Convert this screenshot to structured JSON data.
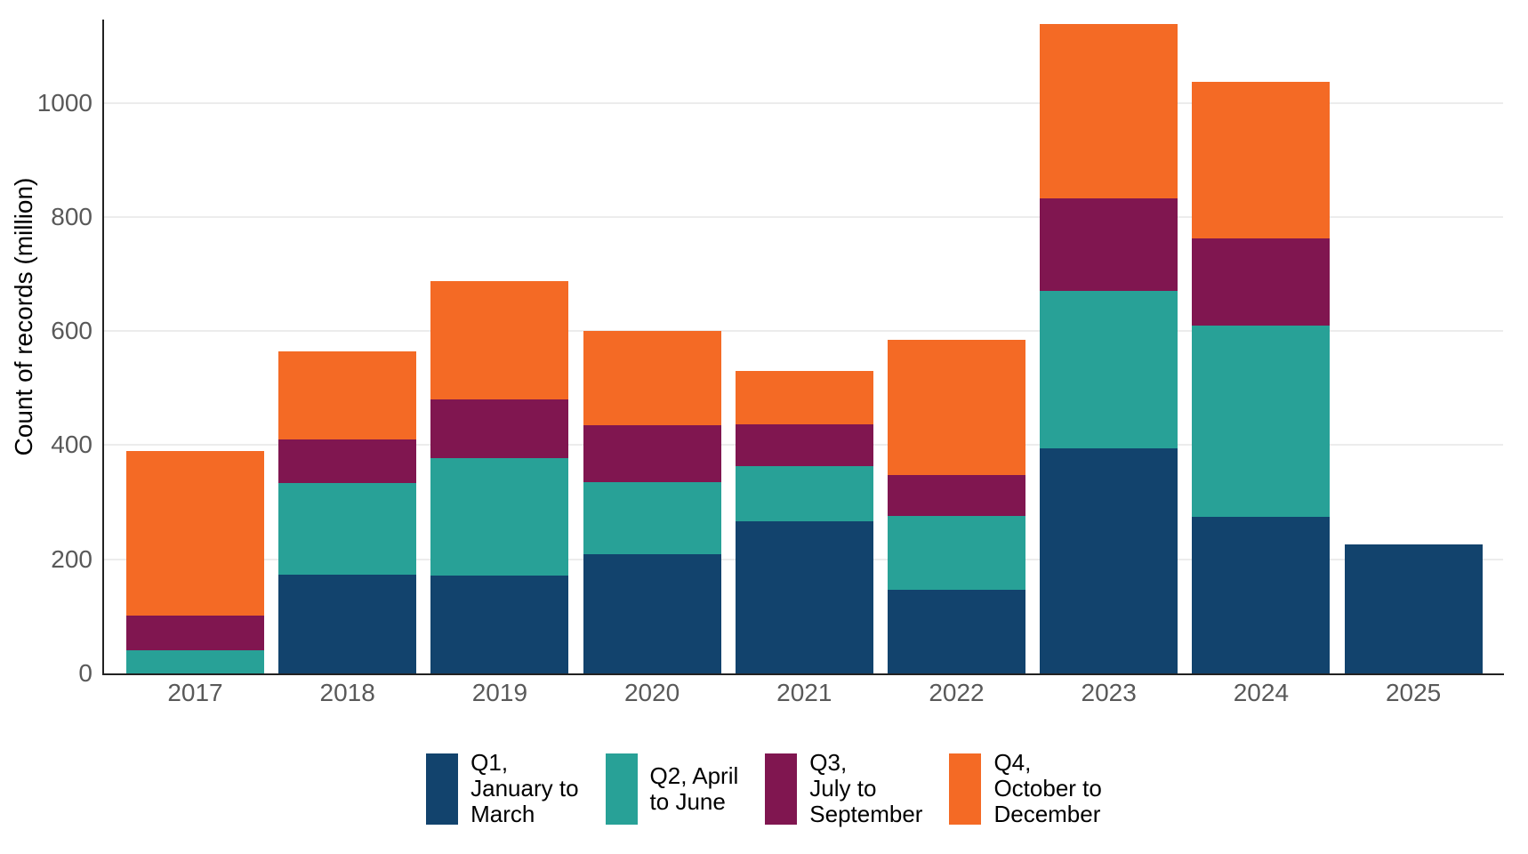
{
  "chart_data": {
    "type": "bar",
    "stacked": true,
    "title": "",
    "xlabel": "",
    "ylabel": "Count of records (million)",
    "categories": [
      "2017",
      "2018",
      "2019",
      "2020",
      "2021",
      "2022",
      "2023",
      "2024",
      "2025"
    ],
    "series": [
      {
        "name": "Q1, January to March",
        "legend_label": "Q1,\nJanuary to\nMarch",
        "color": "#12436D",
        "values": [
          0,
          173,
          171,
          209,
          266,
          146,
          395,
          274,
          226
        ]
      },
      {
        "name": "Q2, April to June",
        "legend_label": "Q2, April\nto June",
        "color": "#28A197",
        "values": [
          40,
          160,
          206,
          127,
          97,
          130,
          275,
          336,
          0
        ]
      },
      {
        "name": "Q3, July to September",
        "legend_label": "Q3,\nJuly to\nSeptember",
        "color": "#801650",
        "values": [
          61,
          77,
          103,
          99,
          74,
          72,
          163,
          152,
          0
        ]
      },
      {
        "name": "Q4, October to December",
        "legend_label": "Q4,\nOctober to\nDecember",
        "color": "#F46A25",
        "values": [
          288,
          154,
          207,
          165,
          93,
          237,
          305,
          274,
          0
        ]
      }
    ],
    "totals": [
      389,
      564,
      687,
      600,
      530,
      585,
      1138,
      1036,
      226
    ],
    "ylim": [
      0,
      1143
    ],
    "yticks": [
      0,
      200,
      400,
      600,
      800,
      1000
    ],
    "ytick_labels": [
      "0",
      "200",
      "400",
      "600",
      "800",
      "1000"
    ],
    "grid": "horizontal",
    "legend_position": "bottom"
  },
  "colors": {
    "axis_line": "#222222",
    "gridline": "#ececec",
    "tick_text": "#595959",
    "legend_text": "#000000",
    "background": "#ffffff"
  }
}
